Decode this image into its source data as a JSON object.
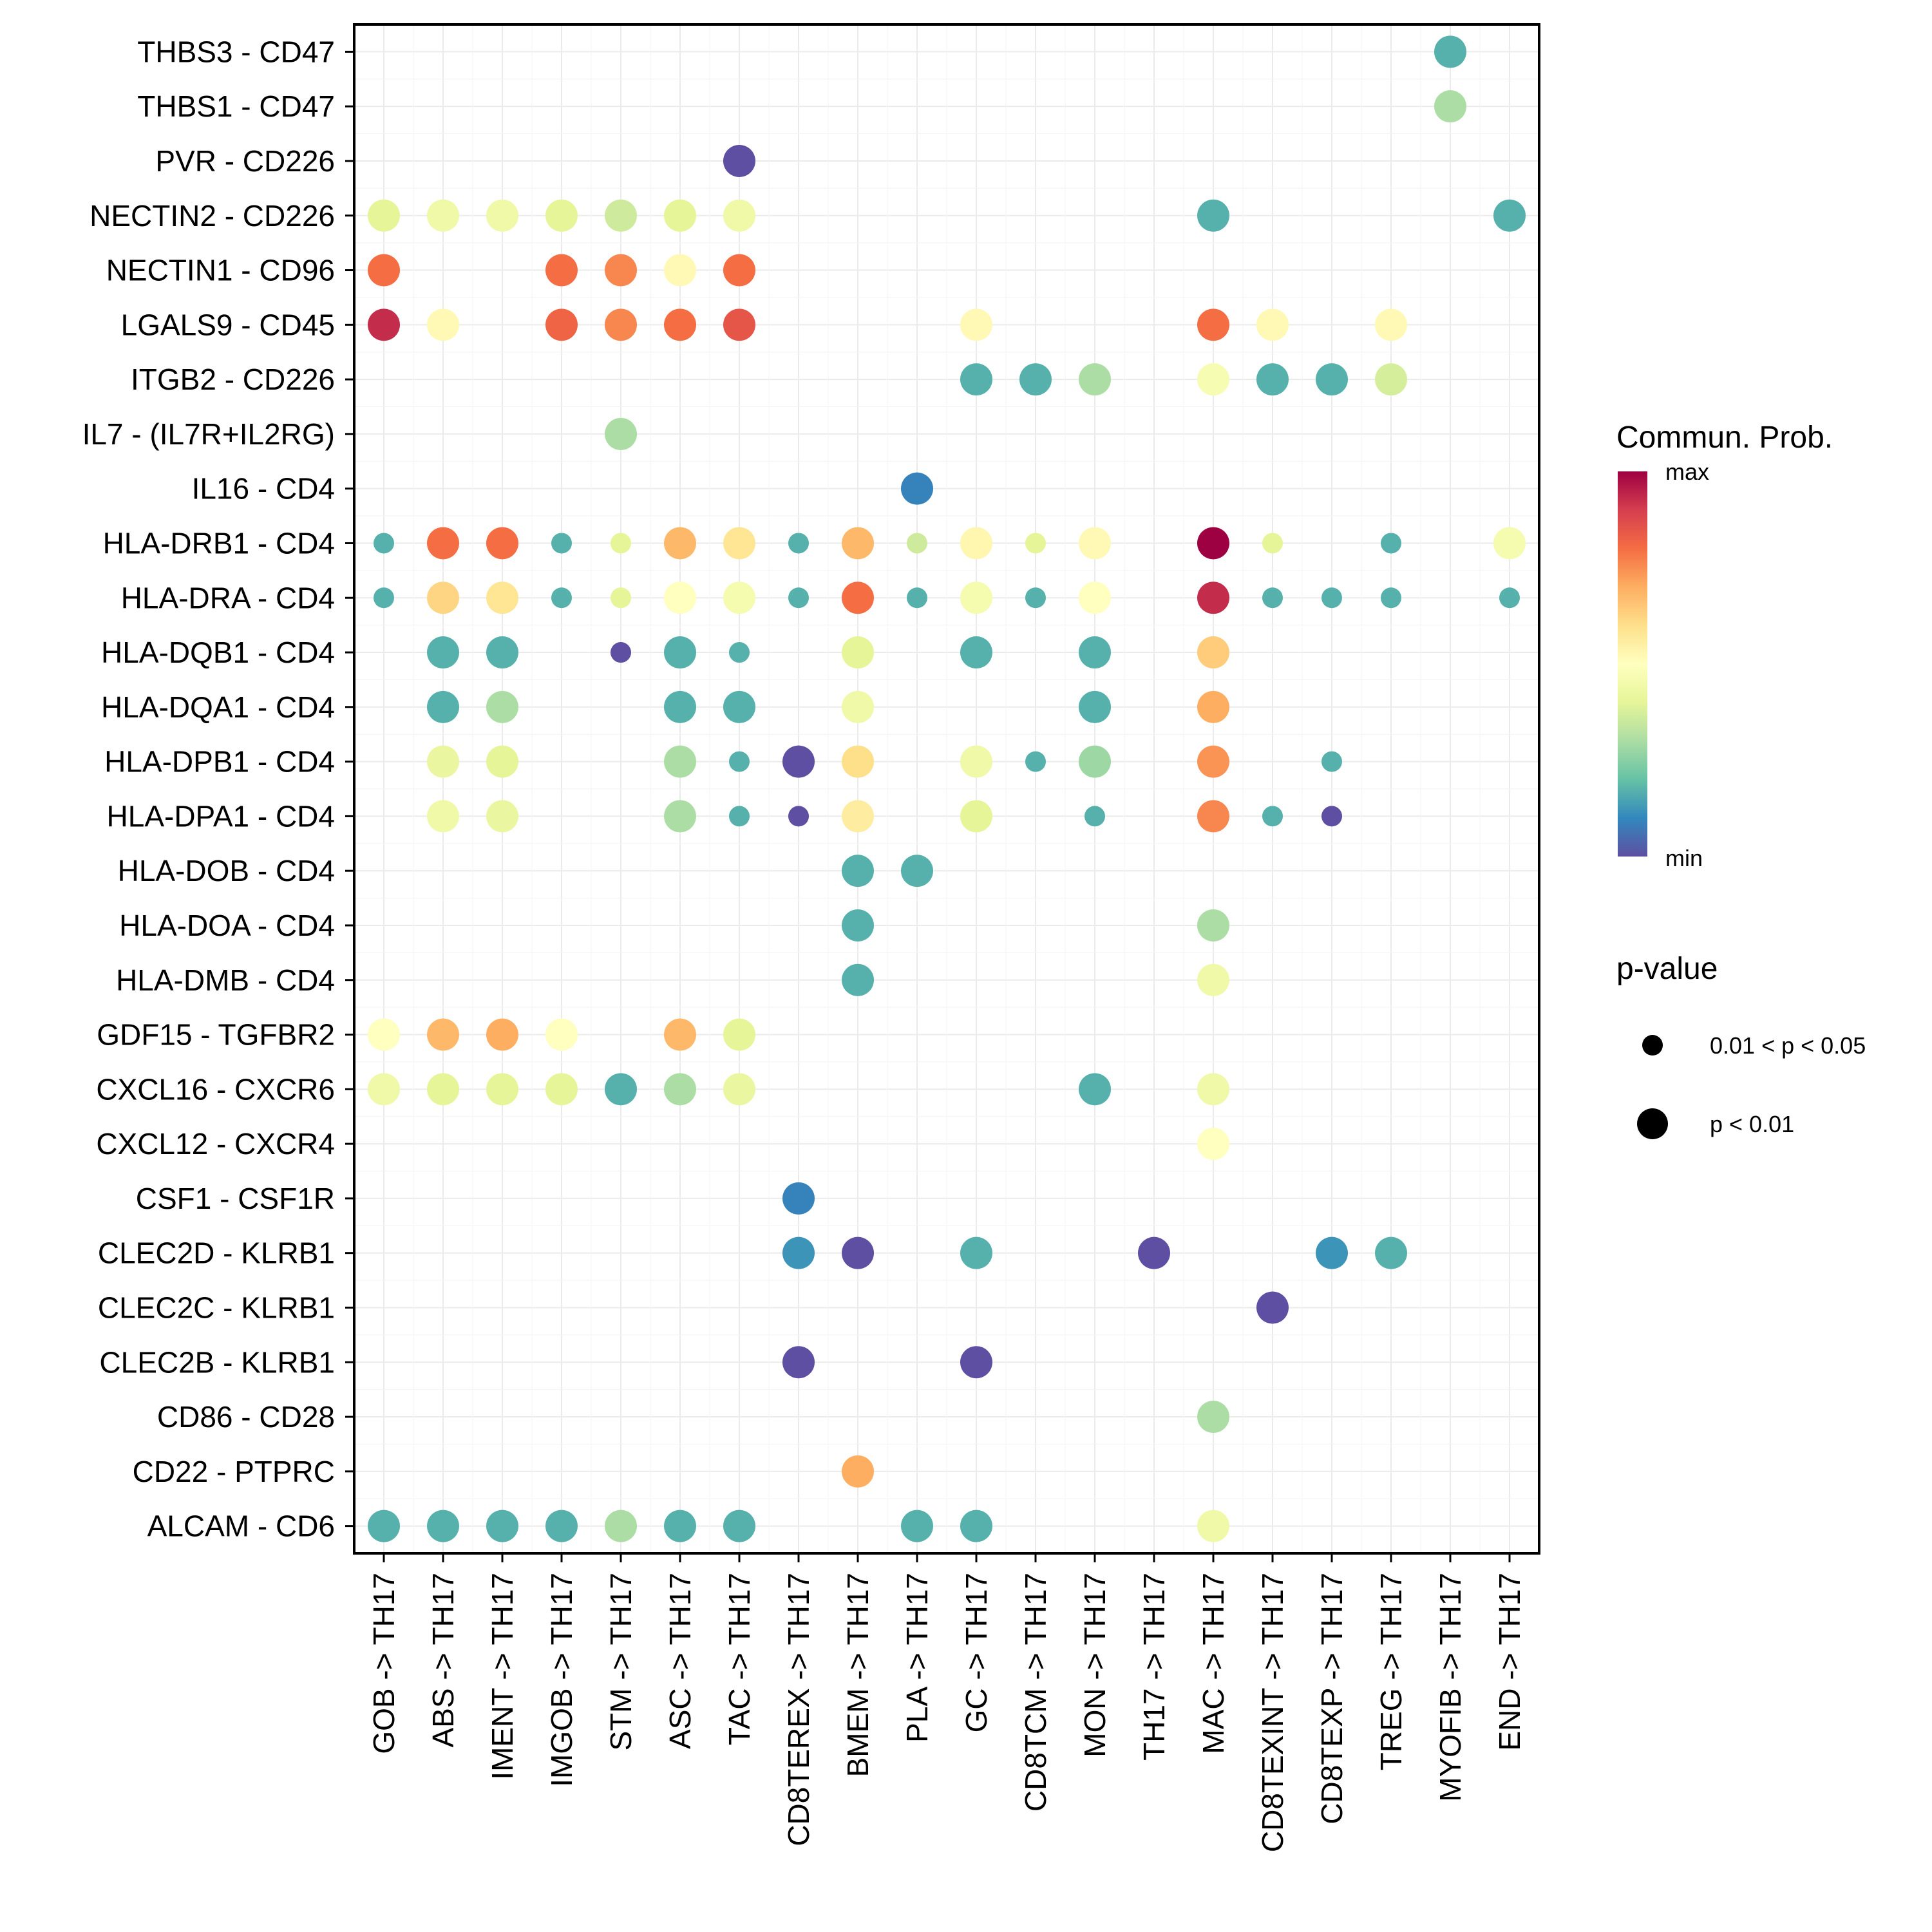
{
  "chart_data": {
    "type": "scatter",
    "subtype": "dot-heatmap",
    "title": "",
    "xlabel": "",
    "ylabel": "",
    "x_categories": [
      "GOB -> TH17",
      "ABS -> TH17",
      "IMENT -> TH17",
      "IMGOB -> TH17",
      "STM -> TH17",
      "ASC -> TH17",
      "TAC -> TH17",
      "CD8TEREX -> TH17",
      "BMEM -> TH17",
      "PLA -> TH17",
      "GC -> TH17",
      "CD8TCM -> TH17",
      "MON -> TH17",
      "TH17 -> TH17",
      "MAC -> TH17",
      "CD8TEXINT -> TH17",
      "CD8TEXP -> TH17",
      "TREG -> TH17",
      "MYOFIB -> TH17",
      "END -> TH17"
    ],
    "y_categories": [
      "THBS3 - CD47",
      "THBS1 - CD47",
      "PVR - CD226",
      "NECTIN2 - CD226",
      "NECTIN1 - CD96",
      "LGALS9 - CD45",
      "ITGB2 - CD226",
      "IL7 - (IL7R+IL2RG)",
      "IL16 - CD4",
      "HLA-DRB1 - CD4",
      "HLA-DRA - CD4",
      "HLA-DQB1 - CD4",
      "HLA-DQA1 - CD4",
      "HLA-DPB1 - CD4",
      "HLA-DPA1 - CD4",
      "HLA-DOB - CD4",
      "HLA-DOA - CD4",
      "HLA-DMB - CD4",
      "GDF15 - TGFBR2",
      "CXCL16 - CXCR6",
      "CXCL12 - CXCR4",
      "CSF1 - CSF1R",
      "CLEC2D - KLRB1",
      "CLEC2C - KLRB1",
      "CLEC2B - KLRB1",
      "CD86 - CD28",
      "CD22 - PTPRC",
      "ALCAM - CD6"
    ],
    "color_scale": {
      "name": "Spectral",
      "label": "Commun. Prob.",
      "min_label": "min",
      "max_label": "max",
      "range": [
        0,
        1
      ],
      "stops": [
        "#5E4FA2",
        "#3288BD",
        "#66C2A5",
        "#ABDDA4",
        "#E6F598",
        "#FFFFBF",
        "#FEE08B",
        "#FDAE61",
        "#F46D43",
        "#D53E4F",
        "#9E0142"
      ]
    },
    "size_legend": {
      "title": "p-value",
      "levels": [
        {
          "key": "s",
          "label": "0.01 < p < 0.05"
        },
        {
          "key": "l",
          "label": "p < 0.01"
        }
      ]
    },
    "points": [
      [
        "THBS3 - CD47",
        "MYOFIB -> TH17",
        0.17,
        "l"
      ],
      [
        "THBS1 - CD47",
        "MYOFIB -> TH17",
        0.3,
        "l"
      ],
      [
        "PVR - CD226",
        "TAC -> TH17",
        0.0,
        "l"
      ],
      [
        "NECTIN2 - CD226",
        "GOB -> TH17",
        0.4,
        "l"
      ],
      [
        "NECTIN2 - CD226",
        "ABS -> TH17",
        0.44,
        "l"
      ],
      [
        "NECTIN2 - CD226",
        "IMENT -> TH17",
        0.44,
        "l"
      ],
      [
        "NECTIN2 - CD226",
        "IMGOB -> TH17",
        0.4,
        "l"
      ],
      [
        "NECTIN2 - CD226",
        "STM -> TH17",
        0.36,
        "l"
      ],
      [
        "NECTIN2 - CD226",
        "ASC -> TH17",
        0.4,
        "l"
      ],
      [
        "NECTIN2 - CD226",
        "TAC -> TH17",
        0.44,
        "l"
      ],
      [
        "NECTIN2 - CD226",
        "MAC -> TH17",
        0.17,
        "l"
      ],
      [
        "NECTIN2 - CD226",
        "END -> TH17",
        0.17,
        "l"
      ],
      [
        "NECTIN1 - CD96",
        "GOB -> TH17",
        0.8,
        "l"
      ],
      [
        "NECTIN1 - CD96",
        "IMGOB -> TH17",
        0.8,
        "l"
      ],
      [
        "NECTIN1 - CD96",
        "STM -> TH17",
        0.76,
        "l"
      ],
      [
        "NECTIN1 - CD96",
        "ASC -> TH17",
        0.52,
        "l"
      ],
      [
        "NECTIN1 - CD96",
        "TAC -> TH17",
        0.8,
        "l"
      ],
      [
        "LGALS9 - CD45",
        "GOB -> TH17",
        0.93,
        "l"
      ],
      [
        "LGALS9 - CD45",
        "ABS -> TH17",
        0.52,
        "l"
      ],
      [
        "LGALS9 - CD45",
        "IMGOB -> TH17",
        0.82,
        "l"
      ],
      [
        "LGALS9 - CD45",
        "STM -> TH17",
        0.76,
        "l"
      ],
      [
        "LGALS9 - CD45",
        "ASC -> TH17",
        0.8,
        "l"
      ],
      [
        "LGALS9 - CD45",
        "TAC -> TH17",
        0.85,
        "l"
      ],
      [
        "LGALS9 - CD45",
        "GC -> TH17",
        0.52,
        "l"
      ],
      [
        "LGALS9 - CD45",
        "MAC -> TH17",
        0.8,
        "l"
      ],
      [
        "LGALS9 - CD45",
        "CD8TEXINT -> TH17",
        0.52,
        "l"
      ],
      [
        "LGALS9 - CD45",
        "TREG -> TH17",
        0.52,
        "l"
      ],
      [
        "ITGB2 - CD226",
        "GC -> TH17",
        0.17,
        "l"
      ],
      [
        "ITGB2 - CD226",
        "CD8TCM -> TH17",
        0.17,
        "l"
      ],
      [
        "ITGB2 - CD226",
        "MON -> TH17",
        0.3,
        "l"
      ],
      [
        "ITGB2 - CD226",
        "MAC -> TH17",
        0.47,
        "l"
      ],
      [
        "ITGB2 - CD226",
        "CD8TEXINT -> TH17",
        0.17,
        "l"
      ],
      [
        "ITGB2 - CD226",
        "CD8TEXP -> TH17",
        0.17,
        "l"
      ],
      [
        "ITGB2 - CD226",
        "TREG -> TH17",
        0.37,
        "l"
      ],
      [
        "IL7 - (IL7R+IL2RG)",
        "STM -> TH17",
        0.3,
        "l"
      ],
      [
        "IL16 - CD4",
        "PLA -> TH17",
        0.09,
        "l"
      ],
      [
        "HLA-DRB1 - CD4",
        "GOB -> TH17",
        0.17,
        "s"
      ],
      [
        "HLA-DRB1 - CD4",
        "ABS -> TH17",
        0.8,
        "l"
      ],
      [
        "HLA-DRB1 - CD4",
        "IMENT -> TH17",
        0.8,
        "l"
      ],
      [
        "HLA-DRB1 - CD4",
        "IMGOB -> TH17",
        0.17,
        "s"
      ],
      [
        "HLA-DRB1 - CD4",
        "STM -> TH17",
        0.4,
        "s"
      ],
      [
        "HLA-DRB1 - CD4",
        "ASC -> TH17",
        0.68,
        "l"
      ],
      [
        "HLA-DRB1 - CD4",
        "TAC -> TH17",
        0.58,
        "l"
      ],
      [
        "HLA-DRB1 - CD4",
        "CD8TEREX -> TH17",
        0.17,
        "s"
      ],
      [
        "HLA-DRB1 - CD4",
        "BMEM -> TH17",
        0.68,
        "l"
      ],
      [
        "HLA-DRB1 - CD4",
        "PLA -> TH17",
        0.36,
        "s"
      ],
      [
        "HLA-DRB1 - CD4",
        "GC -> TH17",
        0.53,
        "l"
      ],
      [
        "HLA-DRB1 - CD4",
        "CD8TCM -> TH17",
        0.4,
        "s"
      ],
      [
        "HLA-DRB1 - CD4",
        "MON -> TH17",
        0.52,
        "l"
      ],
      [
        "HLA-DRB1 - CD4",
        "MAC -> TH17",
        1.0,
        "l"
      ],
      [
        "HLA-DRB1 - CD4",
        "CD8TEXINT -> TH17",
        0.4,
        "s"
      ],
      [
        "HLA-DRB1 - CD4",
        "TREG -> TH17",
        0.17,
        "s"
      ],
      [
        "HLA-DRB1 - CD4",
        "END -> TH17",
        0.46,
        "l"
      ],
      [
        "HLA-DRA - CD4",
        "GOB -> TH17",
        0.17,
        "s"
      ],
      [
        "HLA-DRA - CD4",
        "ABS -> TH17",
        0.62,
        "l"
      ],
      [
        "HLA-DRA - CD4",
        "IMENT -> TH17",
        0.58,
        "l"
      ],
      [
        "HLA-DRA - CD4",
        "IMGOB -> TH17",
        0.17,
        "s"
      ],
      [
        "HLA-DRA - CD4",
        "STM -> TH17",
        0.4,
        "s"
      ],
      [
        "HLA-DRA - CD4",
        "ASC -> TH17",
        0.5,
        "l"
      ],
      [
        "HLA-DRA - CD4",
        "TAC -> TH17",
        0.46,
        "l"
      ],
      [
        "HLA-DRA - CD4",
        "CD8TEREX -> TH17",
        0.17,
        "s"
      ],
      [
        "HLA-DRA - CD4",
        "BMEM -> TH17",
        0.8,
        "l"
      ],
      [
        "HLA-DRA - CD4",
        "PLA -> TH17",
        0.17,
        "s"
      ],
      [
        "HLA-DRA - CD4",
        "GC -> TH17",
        0.46,
        "l"
      ],
      [
        "HLA-DRA - CD4",
        "CD8TCM -> TH17",
        0.17,
        "s"
      ],
      [
        "HLA-DRA - CD4",
        "MON -> TH17",
        0.5,
        "l"
      ],
      [
        "HLA-DRA - CD4",
        "MAC -> TH17",
        0.93,
        "l"
      ],
      [
        "HLA-DRA - CD4",
        "CD8TEXINT -> TH17",
        0.17,
        "s"
      ],
      [
        "HLA-DRA - CD4",
        "CD8TEXP -> TH17",
        0.17,
        "s"
      ],
      [
        "HLA-DRA - CD4",
        "TREG -> TH17",
        0.17,
        "s"
      ],
      [
        "HLA-DRA - CD4",
        "END -> TH17",
        0.17,
        "s"
      ],
      [
        "HLA-DQB1 - CD4",
        "ABS -> TH17",
        0.17,
        "l"
      ],
      [
        "HLA-DQB1 - CD4",
        "IMENT -> TH17",
        0.17,
        "l"
      ],
      [
        "HLA-DQB1 - CD4",
        "STM -> TH17",
        0.0,
        "s"
      ],
      [
        "HLA-DQB1 - CD4",
        "ASC -> TH17",
        0.17,
        "l"
      ],
      [
        "HLA-DQB1 - CD4",
        "TAC -> TH17",
        0.17,
        "s"
      ],
      [
        "HLA-DQB1 - CD4",
        "BMEM -> TH17",
        0.4,
        "l"
      ],
      [
        "HLA-DQB1 - CD4",
        "GC -> TH17",
        0.17,
        "l"
      ],
      [
        "HLA-DQB1 - CD4",
        "MON -> TH17",
        0.17,
        "l"
      ],
      [
        "HLA-DQB1 - CD4",
        "MAC -> TH17",
        0.64,
        "l"
      ],
      [
        "HLA-DQA1 - CD4",
        "ABS -> TH17",
        0.17,
        "l"
      ],
      [
        "HLA-DQA1 - CD4",
        "IMENT -> TH17",
        0.3,
        "l"
      ],
      [
        "HLA-DQA1 - CD4",
        "ASC -> TH17",
        0.17,
        "l"
      ],
      [
        "HLA-DQA1 - CD4",
        "TAC -> TH17",
        0.17,
        "l"
      ],
      [
        "HLA-DQA1 - CD4",
        "BMEM -> TH17",
        0.44,
        "l"
      ],
      [
        "HLA-DQA1 - CD4",
        "MON -> TH17",
        0.17,
        "l"
      ],
      [
        "HLA-DQA1 - CD4",
        "MAC -> TH17",
        0.7,
        "l"
      ],
      [
        "HLA-DPB1 - CD4",
        "ABS -> TH17",
        0.42,
        "l"
      ],
      [
        "HLA-DPB1 - CD4",
        "IMENT -> TH17",
        0.4,
        "l"
      ],
      [
        "HLA-DPB1 - CD4",
        "ASC -> TH17",
        0.3,
        "l"
      ],
      [
        "HLA-DPB1 - CD4",
        "TAC -> TH17",
        0.17,
        "s"
      ],
      [
        "HLA-DPB1 - CD4",
        "CD8TEREX -> TH17",
        0.0,
        "l"
      ],
      [
        "HLA-DPB1 - CD4",
        "BMEM -> TH17",
        0.6,
        "l"
      ],
      [
        "HLA-DPB1 - CD4",
        "GC -> TH17",
        0.44,
        "l"
      ],
      [
        "HLA-DPB1 - CD4",
        "CD8TCM -> TH17",
        0.17,
        "s"
      ],
      [
        "HLA-DPB1 - CD4",
        "MON -> TH17",
        0.28,
        "l"
      ],
      [
        "HLA-DPB1 - CD4",
        "MAC -> TH17",
        0.74,
        "l"
      ],
      [
        "HLA-DPB1 - CD4",
        "CD8TEXP -> TH17",
        0.17,
        "s"
      ],
      [
        "HLA-DPA1 - CD4",
        "ABS -> TH17",
        0.44,
        "l"
      ],
      [
        "HLA-DPA1 - CD4",
        "IMENT -> TH17",
        0.42,
        "l"
      ],
      [
        "HLA-DPA1 - CD4",
        "ASC -> TH17",
        0.3,
        "l"
      ],
      [
        "HLA-DPA1 - CD4",
        "TAC -> TH17",
        0.17,
        "s"
      ],
      [
        "HLA-DPA1 - CD4",
        "CD8TEREX -> TH17",
        0.0,
        "s"
      ],
      [
        "HLA-DPA1 - CD4",
        "BMEM -> TH17",
        0.56,
        "l"
      ],
      [
        "HLA-DPA1 - CD4",
        "GC -> TH17",
        0.4,
        "l"
      ],
      [
        "HLA-DPA1 - CD4",
        "MON -> TH17",
        0.17,
        "s"
      ],
      [
        "HLA-DPA1 - CD4",
        "MAC -> TH17",
        0.76,
        "l"
      ],
      [
        "HLA-DPA1 - CD4",
        "CD8TEXINT -> TH17",
        0.17,
        "s"
      ],
      [
        "HLA-DPA1 - CD4",
        "CD8TEXP -> TH17",
        0.0,
        "s"
      ],
      [
        "HLA-DOB - CD4",
        "BMEM -> TH17",
        0.17,
        "l"
      ],
      [
        "HLA-DOB - CD4",
        "PLA -> TH17",
        0.17,
        "l"
      ],
      [
        "HLA-DOA - CD4",
        "BMEM -> TH17",
        0.17,
        "l"
      ],
      [
        "HLA-DOA - CD4",
        "MAC -> TH17",
        0.3,
        "l"
      ],
      [
        "HLA-DMB - CD4",
        "BMEM -> TH17",
        0.17,
        "l"
      ],
      [
        "HLA-DMB - CD4",
        "MAC -> TH17",
        0.44,
        "l"
      ],
      [
        "GDF15 - TGFBR2",
        "GOB -> TH17",
        0.5,
        "l"
      ],
      [
        "GDF15 - TGFBR2",
        "ABS -> TH17",
        0.68,
        "l"
      ],
      [
        "GDF15 - TGFBR2",
        "IMENT -> TH17",
        0.7,
        "l"
      ],
      [
        "GDF15 - TGFBR2",
        "IMGOB -> TH17",
        0.5,
        "l"
      ],
      [
        "GDF15 - TGFBR2",
        "ASC -> TH17",
        0.68,
        "l"
      ],
      [
        "GDF15 - TGFBR2",
        "TAC -> TH17",
        0.4,
        "l"
      ],
      [
        "CXCL16 - CXCR6",
        "GOB -> TH17",
        0.44,
        "l"
      ],
      [
        "CXCL16 - CXCR6",
        "ABS -> TH17",
        0.4,
        "l"
      ],
      [
        "CXCL16 - CXCR6",
        "IMENT -> TH17",
        0.4,
        "l"
      ],
      [
        "CXCL16 - CXCR6",
        "IMGOB -> TH17",
        0.4,
        "l"
      ],
      [
        "CXCL16 - CXCR6",
        "STM -> TH17",
        0.17,
        "l"
      ],
      [
        "CXCL16 - CXCR6",
        "ASC -> TH17",
        0.3,
        "l"
      ],
      [
        "CXCL16 - CXCR6",
        "TAC -> TH17",
        0.42,
        "l"
      ],
      [
        "CXCL16 - CXCR6",
        "MON -> TH17",
        0.17,
        "l"
      ],
      [
        "CXCL16 - CXCR6",
        "MAC -> TH17",
        0.44,
        "l"
      ],
      [
        "CXCL12 - CXCR4",
        "MAC -> TH17",
        0.5,
        "l"
      ],
      [
        "CSF1 - CSF1R",
        "CD8TEREX -> TH17",
        0.09,
        "l"
      ],
      [
        "CLEC2D - KLRB1",
        "CD8TEREX -> TH17",
        0.12,
        "l"
      ],
      [
        "CLEC2D - KLRB1",
        "BMEM -> TH17",
        0.0,
        "l"
      ],
      [
        "CLEC2D - KLRB1",
        "GC -> TH17",
        0.17,
        "l"
      ],
      [
        "CLEC2D - KLRB1",
        "TH17 -> TH17",
        0.0,
        "l"
      ],
      [
        "CLEC2D - KLRB1",
        "CD8TEXP -> TH17",
        0.12,
        "l"
      ],
      [
        "CLEC2D - KLRB1",
        "TREG -> TH17",
        0.17,
        "l"
      ],
      [
        "CLEC2C - KLRB1",
        "CD8TEXINT -> TH17",
        0.0,
        "l"
      ],
      [
        "CLEC2B - KLRB1",
        "CD8TEREX -> TH17",
        0.0,
        "l"
      ],
      [
        "CLEC2B - KLRB1",
        "GC -> TH17",
        0.0,
        "l"
      ],
      [
        "CD86 - CD28",
        "MAC -> TH17",
        0.3,
        "l"
      ],
      [
        "CD22 - PTPRC",
        "BMEM -> TH17",
        0.7,
        "l"
      ],
      [
        "ALCAM - CD6",
        "GOB -> TH17",
        0.17,
        "l"
      ],
      [
        "ALCAM - CD6",
        "ABS -> TH17",
        0.17,
        "l"
      ],
      [
        "ALCAM - CD6",
        "IMENT -> TH17",
        0.17,
        "l"
      ],
      [
        "ALCAM - CD6",
        "IMGOB -> TH17",
        0.17,
        "l"
      ],
      [
        "ALCAM - CD6",
        "STM -> TH17",
        0.3,
        "l"
      ],
      [
        "ALCAM - CD6",
        "ASC -> TH17",
        0.17,
        "l"
      ],
      [
        "ALCAM - CD6",
        "TAC -> TH17",
        0.17,
        "l"
      ],
      [
        "ALCAM - CD6",
        "PLA -> TH17",
        0.17,
        "l"
      ],
      [
        "ALCAM - CD6",
        "GC -> TH17",
        0.17,
        "l"
      ],
      [
        "ALCAM - CD6",
        "MAC -> TH17",
        0.44,
        "l"
      ]
    ],
    "point_fields": [
      "interaction",
      "source_target",
      "commun_prob_relative",
      "pvalue_class"
    ],
    "grid": true,
    "legend_position": "right"
  }
}
